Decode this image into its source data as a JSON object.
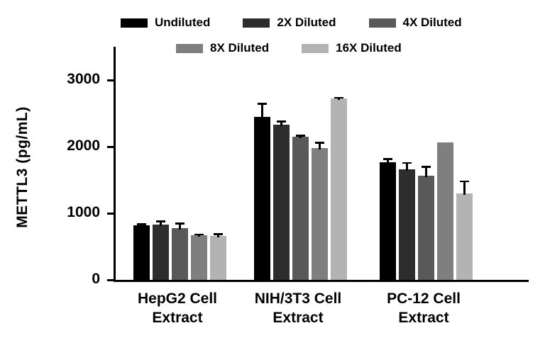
{
  "chart_data": {
    "type": "bar",
    "title": "",
    "ylabel": "METTL3 (pg/mL)",
    "xlabel": "",
    "ylim": [
      0,
      3500
    ],
    "yticks": [
      0,
      1000,
      2000,
      3000
    ],
    "grid": false,
    "legend_position": "top",
    "categories": [
      [
        "HepG2 Cell",
        "Extract"
      ],
      [
        "NIH/3T3 Cell",
        "Extract"
      ],
      [
        "PC-12 Cell",
        "Extract"
      ]
    ],
    "series": [
      {
        "name": "Undiluted",
        "color": "#000000",
        "values": [
          820,
          2450,
          1770
        ],
        "errors": [
          30,
          210,
          60
        ]
      },
      {
        "name": "2X Diluted",
        "color": "#2d2d2d",
        "values": [
          830,
          2330,
          1660
        ],
        "errors": [
          60,
          60,
          110
        ]
      },
      {
        "name": "4X Diluted",
        "color": "#595959",
        "values": [
          780,
          2150,
          1560
        ],
        "errors": [
          80,
          30,
          150
        ]
      },
      {
        "name": "8X Diluted",
        "color": "#7f7f7f",
        "values": [
          670,
          1980,
          2060
        ],
        "errors": [
          25,
          90,
          0
        ]
      },
      {
        "name": "16X Diluted",
        "color": "#b3b3b3",
        "values": [
          660,
          2720,
          1300
        ],
        "errors": [
          40,
          30,
          190
        ]
      }
    ],
    "legend_rows": [
      [
        "Undiluted",
        "2X Diluted",
        "4X Diluted"
      ],
      [
        "8X Diluted",
        "16X Diluted"
      ]
    ]
  }
}
